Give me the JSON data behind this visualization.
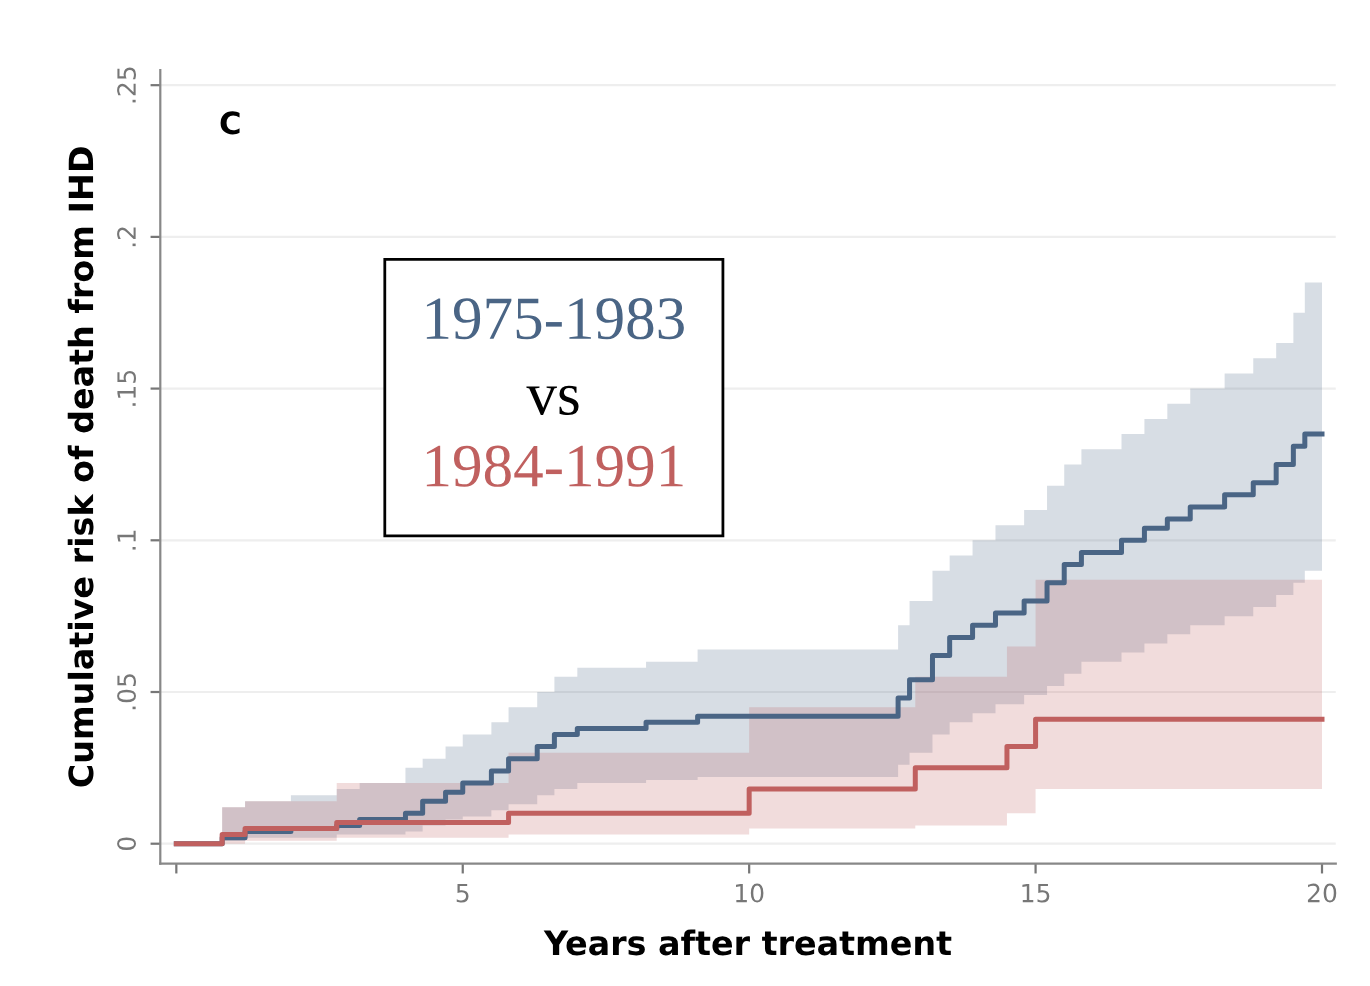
{
  "chart_data": {
    "type": "step",
    "xlabel": "Years after treatment",
    "ylabel": "Cumulative risk of death from IHD",
    "annotations": [
      "C"
    ],
    "xlim": [
      -0.28,
      20.24
    ],
    "xticks": [
      {
        "value": 0,
        "label": null
      },
      5,
      10,
      15,
      20
    ],
    "ylim": [
      -0.0066,
      0.255
    ],
    "yticks": [
      {
        "value": 0,
        "label": "0"
      },
      {
        "value": 0.05,
        "label": ".05"
      },
      {
        "value": 0.1,
        "label": ".1"
      },
      {
        "value": 0.15,
        "label": ".15"
      },
      {
        "value": 0.2,
        "label": ".2"
      },
      {
        "value": 0.25,
        "label": ".25"
      }
    ],
    "grid": "y",
    "legend": "top left",
    "legend_title": "vs",
    "series": [
      {
        "name": "1975-1983",
        "color": "#4a6585",
        "x": [
          0,
          0.8,
          1.2,
          2,
          2.8,
          3.2,
          4,
          4.3,
          4.7,
          5,
          5.5,
          5.8,
          6.3,
          6.6,
          7,
          8.2,
          9.1,
          12.6,
          12.8,
          13.2,
          13.5,
          13.9,
          14.3,
          14.8,
          15.2,
          15.5,
          15.8,
          16.5,
          16.9,
          17.3,
          17.7,
          18.3,
          18.8,
          19.2,
          19.5,
          19.7,
          20
        ],
        "values": [
          0,
          0.002,
          0.004,
          0.005,
          0.006,
          0.008,
          0.01,
          0.014,
          0.017,
          0.02,
          0.024,
          0.028,
          0.032,
          0.036,
          0.038,
          0.04,
          0.042,
          0.048,
          0.054,
          0.062,
          0.068,
          0.072,
          0.076,
          0.08,
          0.086,
          0.092,
          0.096,
          0.1,
          0.104,
          0.107,
          0.111,
          0.115,
          0.119,
          0.125,
          0.131,
          0.135,
          0.135
        ],
        "upper": [
          0,
          0.012,
          0.014,
          0.016,
          0.018,
          0.02,
          0.025,
          0.028,
          0.032,
          0.036,
          0.04,
          0.045,
          0.05,
          0.055,
          0.058,
          0.06,
          0.064,
          0.072,
          0.08,
          0.09,
          0.095,
          0.1,
          0.105,
          0.11,
          0.118,
          0.125,
          0.13,
          0.135,
          0.14,
          0.145,
          0.15,
          0.155,
          0.16,
          0.165,
          0.175,
          0.185,
          0.185
        ],
        "lower": [
          0,
          0.001,
          0.002,
          0.002,
          0.003,
          0.003,
          0.004,
          0.006,
          0.008,
          0.009,
          0.011,
          0.013,
          0.016,
          0.018,
          0.02,
          0.021,
          0.022,
          0.026,
          0.03,
          0.036,
          0.04,
          0.043,
          0.046,
          0.049,
          0.052,
          0.056,
          0.06,
          0.063,
          0.066,
          0.069,
          0.072,
          0.075,
          0.078,
          0.082,
          0.086,
          0.09,
          0.095
        ]
      },
      {
        "name": "1984-1991",
        "color": "#c0605f",
        "x": [
          0,
          0.8,
          1.2,
          2.8,
          5.8,
          10,
          12.9,
          14.5,
          15,
          20
        ],
        "values": [
          0,
          0.003,
          0.005,
          0.007,
          0.01,
          0.018,
          0.025,
          0.032,
          0.041,
          0.041
        ],
        "upper": [
          0,
          0.012,
          0.014,
          0.02,
          0.03,
          0.045,
          0.055,
          0.065,
          0.087,
          0.087
        ],
        "lower": [
          0,
          0,
          0.001,
          0.002,
          0.003,
          0.005,
          0.006,
          0.01,
          0.018,
          0.018
        ]
      }
    ]
  }
}
